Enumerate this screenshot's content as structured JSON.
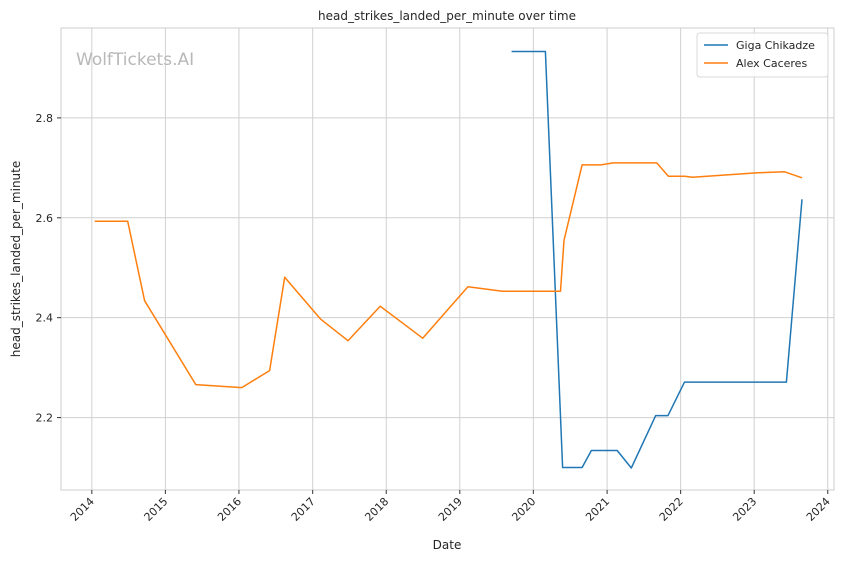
{
  "chart_data": {
    "type": "line",
    "title": "head_strikes_landed_per_minute over time",
    "xlabel": "Date",
    "ylabel": "head_strikes_landed_per_minute",
    "watermark": "WolfTickets.AI",
    "x_ticks": [
      "2014",
      "2015",
      "2016",
      "2017",
      "2018",
      "2019",
      "2020",
      "2021",
      "2022",
      "2023",
      "2024"
    ],
    "y_ticks": [
      "2.2",
      "2.4",
      "2.6",
      "2.8"
    ],
    "xlim": [
      "2013-08-01",
      "2024-02-01"
    ],
    "ylim": [
      2.055,
      2.98
    ],
    "grid": true,
    "legend_position": "top-right",
    "series": [
      {
        "name": "Giga Chikadze",
        "color": "#1f77b4",
        "points": [
          [
            "2019-09-15",
            2.933
          ],
          [
            "2020-03-01",
            2.933
          ],
          [
            "2020-05-25",
            2.1
          ],
          [
            "2020-08-30",
            2.1
          ],
          [
            "2020-10-15",
            2.134
          ],
          [
            "2021-02-20",
            2.134
          ],
          [
            "2021-05-01",
            2.099
          ],
          [
            "2021-08-30",
            2.204
          ],
          [
            "2021-10-30",
            2.204
          ],
          [
            "2022-01-20",
            2.271
          ],
          [
            "2023-06-10",
            2.271
          ],
          [
            "2023-08-26",
            2.637
          ]
        ]
      },
      {
        "name": "Alex Caceres",
        "color": "#ff7f0e",
        "points": [
          [
            "2014-01-15",
            2.593
          ],
          [
            "2014-06-28",
            2.593
          ],
          [
            "2014-09-20",
            2.434
          ],
          [
            "2015-06-01",
            2.266
          ],
          [
            "2016-01-15",
            2.26
          ],
          [
            "2016-06-01",
            2.294
          ],
          [
            "2016-08-15",
            2.481
          ],
          [
            "2017-02-10",
            2.397
          ],
          [
            "2017-06-25",
            2.354
          ],
          [
            "2017-12-02",
            2.423
          ],
          [
            "2018-07-01",
            2.359
          ],
          [
            "2019-02-10",
            2.462
          ],
          [
            "2019-08-01",
            2.453
          ],
          [
            "2020-05-15",
            2.453
          ],
          [
            "2020-06-01",
            2.555
          ],
          [
            "2020-08-30",
            2.706
          ],
          [
            "2020-12-01",
            2.706
          ],
          [
            "2021-02-01",
            2.71
          ],
          [
            "2021-09-04",
            2.71
          ],
          [
            "2021-11-01",
            2.683
          ],
          [
            "2022-01-20",
            2.683
          ],
          [
            "2022-03-01",
            2.681
          ],
          [
            "2023-01-20",
            2.69
          ],
          [
            "2023-06-01",
            2.692
          ],
          [
            "2023-08-26",
            2.68
          ]
        ]
      }
    ]
  }
}
